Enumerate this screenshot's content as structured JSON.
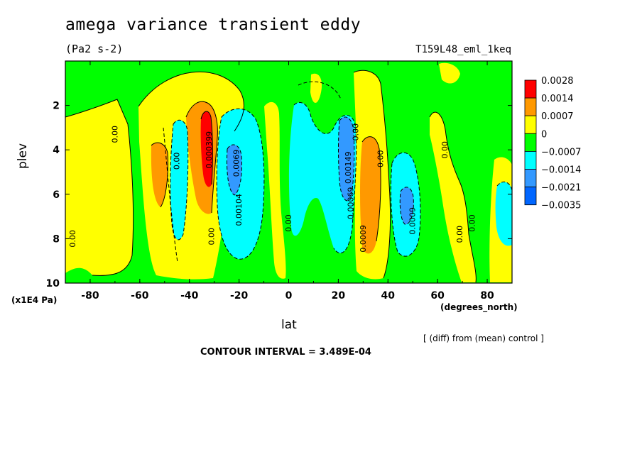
{
  "chart_data": {
    "type": "heatmap",
    "title": "amega variance transient eddy",
    "units": "(Pa2 s-2)",
    "run_label": "T159L48_eml_1keq",
    "xlabel": "lat",
    "x_units": "(degrees_north)",
    "ylabel": "plev",
    "y_scale_label": "(x1E4 Pa)",
    "note": "[ (diff) from (mean) control ]",
    "contour_interval": "CONTOUR INTERVAL = 3.489E-04",
    "xlim": [
      -90,
      90
    ],
    "ylim": [
      10,
      0
    ],
    "x_ticks": [
      "-80",
      "-60",
      "-40",
      "-20",
      "0",
      "20",
      "40",
      "60",
      "80"
    ],
    "y_ticks": [
      "2",
      "4",
      "6",
      "8",
      "10"
    ],
    "colorbar": {
      "labels": [
        "0.0028",
        "0.0014",
        "0.0007",
        "0",
        "−0.0007",
        "−0.0014",
        "−0.0021",
        "−0.0035"
      ],
      "colors": [
        "#ff0000",
        "#ff9900",
        "#ffff00",
        "#00ff00",
        "#00ffff",
        "#3399ff",
        "#0066ff"
      ]
    },
    "contour_labels": [
      {
        "text": "0.00",
        "lat": -86,
        "plev": 8.0
      },
      {
        "text": "0.00",
        "lat": -69,
        "plev": 3.3
      },
      {
        "text": "0.00",
        "lat": -44,
        "plev": 4.5
      },
      {
        "text": "0.000399",
        "lat": -31,
        "plev": 4.0
      },
      {
        "text": "0.0069",
        "lat": -20,
        "plev": 4.6
      },
      {
        "text": "0.00",
        "lat": -30,
        "plev": 7.9
      },
      {
        "text": "0.00104",
        "lat": -19,
        "plev": 6.7
      },
      {
        "text": "0.00",
        "lat": 1,
        "plev": 7.3
      },
      {
        "text": "0.00",
        "lat": 28,
        "plev": 3.2
      },
      {
        "text": "0.00149",
        "lat": 25,
        "plev": 4.8
      },
      {
        "text": "0.00069",
        "lat": 26,
        "plev": 6.4
      },
      {
        "text": "0.0009",
        "lat": 31,
        "plev": 8.0
      },
      {
        "text": "0.00",
        "lat": 38,
        "plev": 4.4
      },
      {
        "text": "0.0009",
        "lat": 51,
        "plev": 7.2
      },
      {
        "text": "0.00",
        "lat": 64,
        "plev": 4.0
      },
      {
        "text": "0.00",
        "lat": 70,
        "plev": 7.8
      },
      {
        "text": "0.00",
        "lat": 75,
        "plev": 7.3
      }
    ]
  }
}
